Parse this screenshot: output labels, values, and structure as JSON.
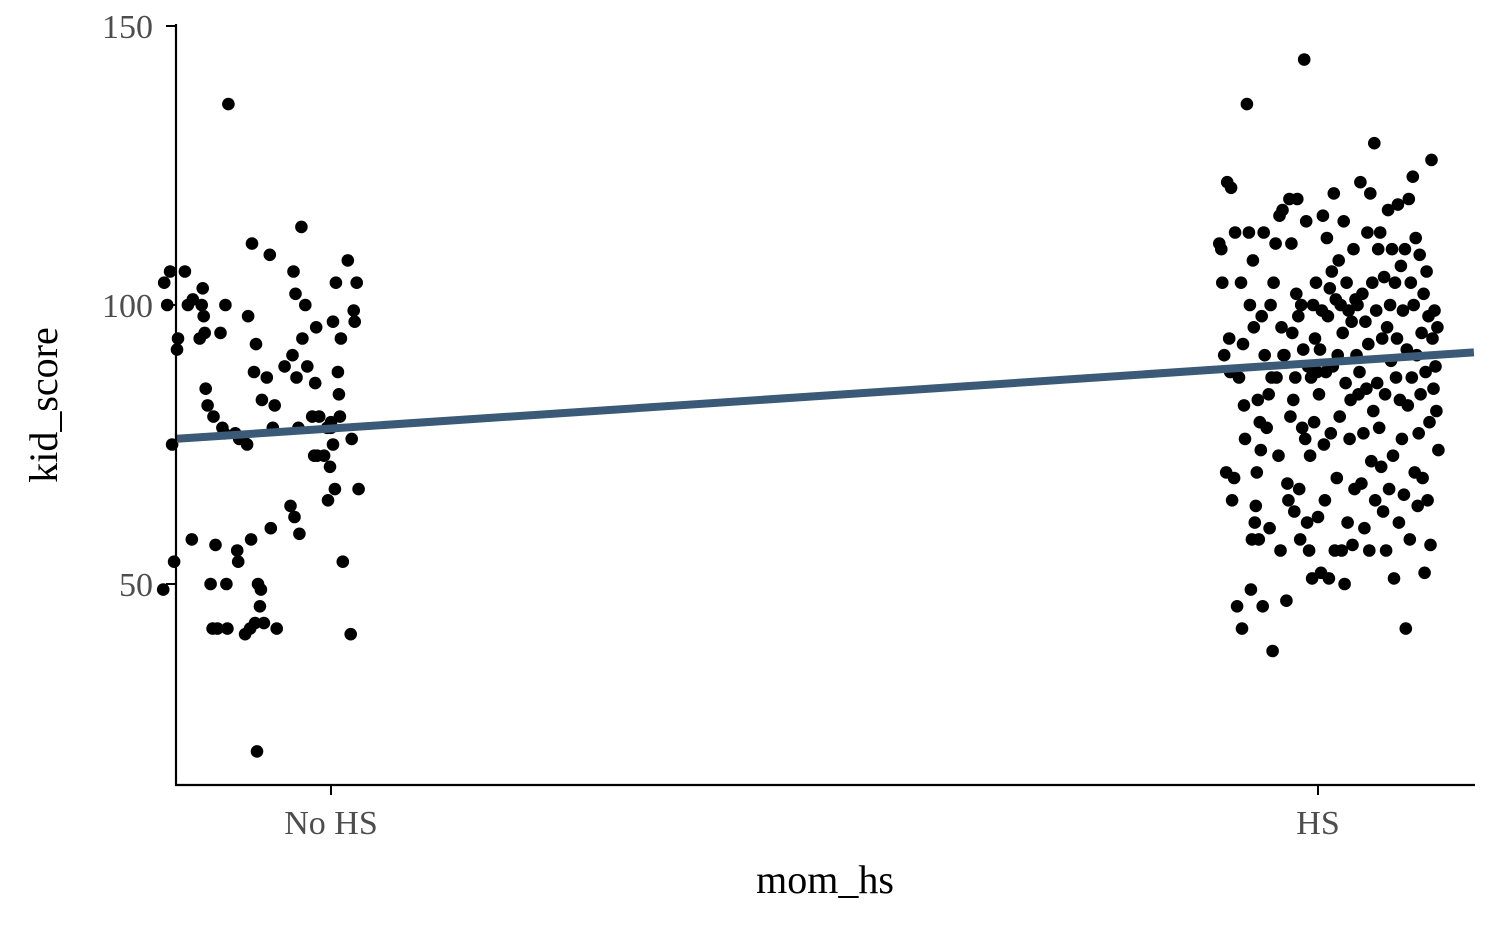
{
  "chart_data": {
    "type": "scatter",
    "title": "",
    "xlabel": "mom_hs",
    "ylabel": "kid_score",
    "categories": [
      "No HS",
      "HS"
    ],
    "ylim": [
      14,
      150
    ],
    "yticks": [
      50,
      100,
      150
    ],
    "ytick_labels": [
      "50",
      "100",
      "150"
    ],
    "fit_line": {
      "x_start": -0.158,
      "y_start": 76.0,
      "x_end": 1.158,
      "y_end": 91.5,
      "color": "#3b5a78"
    },
    "point_color": "#000000",
    "series": [
      {
        "name": "No HS",
        "points": [
          [
            -0.17,
            49
          ],
          [
            -0.169,
            104
          ],
          [
            -0.166,
            100
          ],
          [
            -0.163,
            106
          ],
          [
            -0.161,
            75
          ],
          [
            -0.159,
            54
          ],
          [
            -0.156,
            92
          ],
          [
            -0.155,
            94
          ],
          [
            -0.148,
            106
          ],
          [
            -0.145,
            100
          ],
          [
            -0.141,
            58
          ],
          [
            -0.14,
            101
          ],
          [
            -0.133,
            94
          ],
          [
            -0.131,
            100
          ],
          [
            -0.13,
            103
          ],
          [
            -0.129,
            98
          ],
          [
            -0.128,
            95
          ],
          [
            -0.127,
            85
          ],
          [
            -0.125,
            82
          ],
          [
            -0.122,
            50
          ],
          [
            -0.12,
            42
          ],
          [
            -0.119,
            80
          ],
          [
            -0.117,
            57
          ],
          [
            -0.115,
            42
          ],
          [
            -0.112,
            95
          ],
          [
            -0.11,
            78
          ],
          [
            -0.108,
            77
          ],
          [
            -0.107,
            100
          ],
          [
            -0.106,
            50
          ],
          [
            -0.105,
            42
          ],
          [
            -0.104,
            136
          ],
          [
            -0.097,
            77
          ],
          [
            -0.095,
            56
          ],
          [
            -0.094,
            54
          ],
          [
            -0.093,
            76
          ],
          [
            -0.089,
            76
          ],
          [
            -0.087,
            41
          ],
          [
            -0.085,
            75
          ],
          [
            -0.084,
            98
          ],
          [
            -0.082,
            42
          ],
          [
            -0.081,
            58
          ],
          [
            -0.08,
            111
          ],
          [
            -0.078,
            88
          ],
          [
            -0.077,
            43
          ],
          [
            -0.076,
            93
          ],
          [
            -0.075,
            20
          ],
          [
            -0.074,
            50
          ],
          [
            -0.072,
            46
          ],
          [
            -0.071,
            49
          ],
          [
            -0.07,
            83
          ],
          [
            -0.068,
            43
          ],
          [
            -0.065,
            87
          ],
          [
            -0.062,
            109
          ],
          [
            -0.061,
            60
          ],
          [
            -0.059,
            78
          ],
          [
            -0.057,
            82
          ],
          [
            -0.055,
            42
          ],
          [
            -0.047,
            89
          ],
          [
            -0.041,
            64
          ],
          [
            -0.039,
            91
          ],
          [
            -0.038,
            106
          ],
          [
            -0.037,
            62
          ],
          [
            -0.036,
            102
          ],
          [
            -0.035,
            87
          ],
          [
            -0.033,
            78
          ],
          [
            -0.032,
            59
          ],
          [
            -0.03,
            114
          ],
          [
            -0.029,
            94
          ],
          [
            -0.026,
            100
          ],
          [
            -0.024,
            89
          ],
          [
            -0.019,
            80
          ],
          [
            -0.017,
            73
          ],
          [
            -0.016,
            86
          ],
          [
            -0.015,
            96
          ],
          [
            -0.014,
            73
          ],
          [
            -0.012,
            80
          ],
          [
            -0.007,
            73
          ],
          [
            -0.004,
            78
          ],
          [
            -0.003,
            65
          ],
          [
            -0.001,
            71
          ],
          [
            0.0,
            78
          ],
          [
            0.002,
            75
          ],
          [
            0.002,
            97
          ],
          [
            0.004,
            67
          ],
          [
            0.005,
            104
          ],
          [
            0.007,
            88
          ],
          [
            0.009,
            80
          ],
          [
            0.01,
            94
          ],
          [
            0.012,
            54
          ],
          [
            0.017,
            108
          ],
          [
            0.02,
            41
          ],
          [
            0.021,
            76
          ],
          [
            0.023,
            99
          ],
          [
            0.024,
            97
          ],
          [
            0.026,
            104
          ],
          [
            0.028,
            67
          ],
          [
            0.008,
            84
          ],
          [
            0.0,
            79
          ]
        ]
      },
      {
        "name": "HS",
        "points": [
          [
            0.9,
            111
          ],
          [
            0.902,
            110
          ],
          [
            0.903,
            104
          ],
          [
            0.905,
            91
          ],
          [
            0.907,
            70
          ],
          [
            0.908,
            122
          ],
          [
            0.91,
            94
          ],
          [
            0.911,
            88
          ],
          [
            0.912,
            121
          ],
          [
            0.913,
            65
          ],
          [
            0.915,
            69
          ],
          [
            0.916,
            113
          ],
          [
            0.918,
            46
          ],
          [
            0.92,
            87
          ],
          [
            0.922,
            104
          ],
          [
            0.923,
            42
          ],
          [
            0.924,
            93
          ],
          [
            0.925,
            82
          ],
          [
            0.926,
            76
          ],
          [
            0.928,
            136
          ],
          [
            0.93,
            113
          ],
          [
            0.931,
            100
          ],
          [
            0.932,
            49
          ],
          [
            0.933,
            58
          ],
          [
            0.934,
            108
          ],
          [
            0.935,
            96
          ],
          [
            0.936,
            61
          ],
          [
            0.937,
            64
          ],
          [
            0.938,
            70
          ],
          [
            0.939,
            83
          ],
          [
            0.94,
            58
          ],
          [
            0.941,
            79
          ],
          [
            0.942,
            74
          ],
          [
            0.943,
            98
          ],
          [
            0.944,
            46
          ],
          [
            0.945,
            113
          ],
          [
            0.946,
            91
          ],
          [
            0.948,
            78
          ],
          [
            0.95,
            84
          ],
          [
            0.951,
            60
          ],
          [
            0.952,
            100
          ],
          [
            0.953,
            87
          ],
          [
            0.954,
            38
          ],
          [
            0.955,
            104
          ],
          [
            0.957,
            111
          ],
          [
            0.958,
            87
          ],
          [
            0.96,
            73
          ],
          [
            0.961,
            116
          ],
          [
            0.962,
            56
          ],
          [
            0.963,
            96
          ],
          [
            0.964,
            117
          ],
          [
            0.965,
            91
          ],
          [
            0.966,
            91
          ],
          [
            0.968,
            47
          ],
          [
            0.969,
            68
          ],
          [
            0.97,
            65
          ],
          [
            0.971,
            119
          ],
          [
            0.972,
            80
          ],
          [
            0.973,
            111
          ],
          [
            0.974,
            95
          ],
          [
            0.975,
            83
          ],
          [
            0.976,
            63
          ],
          [
            0.977,
            87
          ],
          [
            0.978,
            102
          ],
          [
            0.979,
            119
          ],
          [
            0.98,
            98
          ],
          [
            0.981,
            67
          ],
          [
            0.982,
            58
          ],
          [
            0.983,
            100
          ],
          [
            0.984,
            78
          ],
          [
            0.985,
            92
          ],
          [
            0.986,
            144
          ],
          [
            0.987,
            76
          ],
          [
            0.988,
            115
          ],
          [
            0.989,
            61
          ],
          [
            0.99,
            89
          ],
          [
            0.991,
            56
          ],
          [
            0.992,
            73
          ],
          [
            0.993,
            87
          ],
          [
            0.994,
            51
          ],
          [
            0.995,
            100
          ],
          [
            0.996,
            79
          ],
          [
            0.997,
            94
          ],
          [
            0.998,
            104
          ],
          [
            0.999,
            88
          ],
          [
            1.0,
            62
          ],
          [
            1.001,
            84
          ],
          [
            1.002,
            92
          ],
          [
            1.003,
            52
          ],
          [
            1.004,
            99
          ],
          [
            1.005,
            116
          ],
          [
            1.006,
            75
          ],
          [
            1.007,
            65
          ],
          [
            1.008,
            88
          ],
          [
            1.009,
            112
          ],
          [
            1.01,
            98
          ],
          [
            1.011,
            51
          ],
          [
            1.012,
            103
          ],
          [
            1.013,
            77
          ],
          [
            1.014,
            106
          ],
          [
            1.015,
            89
          ],
          [
            1.016,
            120
          ],
          [
            1.017,
            56
          ],
          [
            1.018,
            101
          ],
          [
            1.019,
            69
          ],
          [
            1.02,
            91
          ],
          [
            1.021,
            108
          ],
          [
            1.022,
            80
          ],
          [
            1.023,
            100
          ],
          [
            1.024,
            56
          ],
          [
            1.025,
            95
          ],
          [
            1.026,
            115
          ],
          [
            1.027,
            50
          ],
          [
            1.028,
            86
          ],
          [
            1.029,
            104
          ],
          [
            1.03,
            61
          ],
          [
            1.031,
            99
          ],
          [
            1.032,
            76
          ],
          [
            1.033,
            83
          ],
          [
            1.034,
            97
          ],
          [
            1.035,
            57
          ],
          [
            1.036,
            110
          ],
          [
            1.037,
            67
          ],
          [
            1.038,
            101
          ],
          [
            1.039,
            91
          ],
          [
            1.04,
            100
          ],
          [
            1.041,
            84
          ],
          [
            1.042,
            88
          ],
          [
            1.043,
            122
          ],
          [
            1.044,
            68
          ],
          [
            1.045,
            102
          ],
          [
            1.046,
            77
          ],
          [
            1.047,
            60
          ],
          [
            1.048,
            97
          ],
          [
            1.049,
            85
          ],
          [
            1.05,
            113
          ],
          [
            1.051,
            93
          ],
          [
            1.052,
            56
          ],
          [
            1.053,
            120
          ],
          [
            1.054,
            72
          ],
          [
            1.055,
            104
          ],
          [
            1.056,
            81
          ],
          [
            1.057,
            129
          ],
          [
            1.058,
            65
          ],
          [
            1.059,
            99
          ],
          [
            1.06,
            86
          ],
          [
            1.061,
            110
          ],
          [
            1.062,
            78
          ],
          [
            1.063,
            113
          ],
          [
            1.064,
            71
          ],
          [
            1.065,
            94
          ],
          [
            1.066,
            63
          ],
          [
            1.067,
            105
          ],
          [
            1.068,
            84
          ],
          [
            1.069,
            56
          ],
          [
            1.07,
            96
          ],
          [
            1.071,
            117
          ],
          [
            1.072,
            67
          ],
          [
            1.073,
            100
          ],
          [
            1.074,
            90
          ],
          [
            1.075,
            110
          ],
          [
            1.076,
            73
          ],
          [
            1.077,
            51
          ],
          [
            1.078,
            104
          ],
          [
            1.079,
            87
          ],
          [
            1.08,
            94
          ],
          [
            1.081,
            118
          ],
          [
            1.082,
            61
          ],
          [
            1.083,
            83
          ],
          [
            1.084,
            107
          ],
          [
            1.085,
            76
          ],
          [
            1.086,
            99
          ],
          [
            1.087,
            66
          ],
          [
            1.088,
            110
          ],
          [
            1.089,
            42
          ],
          [
            1.09,
            92
          ],
          [
            1.091,
            82
          ],
          [
            1.092,
            119
          ],
          [
            1.093,
            58
          ],
          [
            1.094,
            104
          ],
          [
            1.095,
            87
          ],
          [
            1.096,
            123
          ],
          [
            1.097,
            100
          ],
          [
            1.098,
            70
          ],
          [
            1.099,
            112
          ],
          [
            1.1,
            91
          ],
          [
            1.101,
            64
          ],
          [
            1.102,
            77
          ],
          [
            1.103,
            109
          ],
          [
            1.104,
            84
          ],
          [
            1.105,
            95
          ],
          [
            1.106,
            69
          ],
          [
            1.107,
            102
          ],
          [
            1.108,
            52
          ],
          [
            1.109,
            88
          ],
          [
            1.11,
            106
          ],
          [
            1.111,
            65
          ],
          [
            1.112,
            98
          ],
          [
            1.113,
            79
          ],
          [
            1.114,
            57
          ],
          [
            1.115,
            126
          ],
          [
            1.116,
            94
          ],
          [
            1.117,
            85
          ],
          [
            1.118,
            99
          ],
          [
            1.119,
            89
          ],
          [
            1.12,
            81
          ],
          [
            1.121,
            96
          ],
          [
            1.122,
            74
          ]
        ]
      }
    ]
  }
}
